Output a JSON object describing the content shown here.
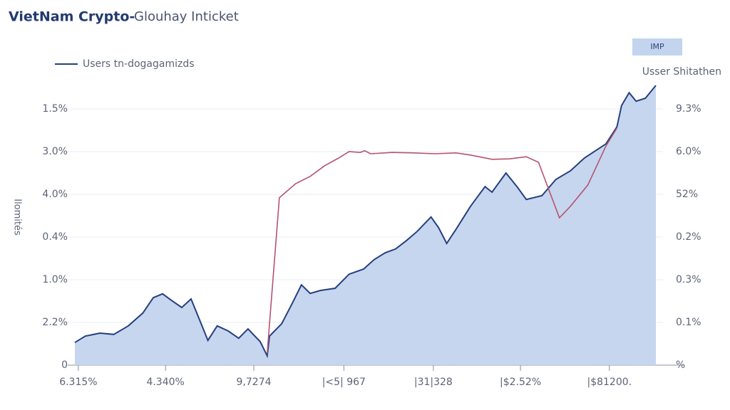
{
  "chart_data": {
    "type": "area",
    "title": "VietNam Crypto-",
    "subtitle": "Glouhay Inticket",
    "y_label": "Ilomités",
    "annotation": "IMP",
    "legend": "upper left",
    "grid": true,
    "xlim": [
      0,
      100
    ],
    "xticks": [
      {
        "value": 0.6,
        "label": "6.315%"
      },
      {
        "value": 15.6,
        "label": "4.340%"
      },
      {
        "value": 30.8,
        "label": "9,7274"
      },
      {
        "value": 46.3,
        "label": "|<5| 967"
      },
      {
        "value": 61.7,
        "label": "|31|328"
      },
      {
        "value": 76.7,
        "label": "|$2.52%"
      },
      {
        "value": 92,
        "label": "|$81200."
      }
    ],
    "ylim": [
      0,
      6.9
    ],
    "yticks": [
      {
        "value": 0,
        "label": "0"
      },
      {
        "value": 1,
        "label": "2.2%"
      },
      {
        "value": 2,
        "label": "1.0%"
      },
      {
        "value": 3,
        "label": "0.4%"
      },
      {
        "value": 4,
        "label": "4.0%"
      },
      {
        "value": 5,
        "label": "3.0%"
      },
      {
        "value": 6,
        "label": "1.5%"
      }
    ],
    "y2lim": [
      0,
      6.9
    ],
    "y2ticks": [
      {
        "value": 0,
        "label": "%"
      },
      {
        "value": 1,
        "label": "0.1%"
      },
      {
        "value": 2,
        "label": "0.3%"
      },
      {
        "value": 3,
        "label": "0.2%"
      },
      {
        "value": 4,
        "label": "52%"
      },
      {
        "value": 5,
        "label": "6.0%"
      },
      {
        "value": 6,
        "label": "9.3%"
      }
    ],
    "series": [
      {
        "name": "Users tn-dogagamizds",
        "color": "#263f7e",
        "fill": "#c3d4ee",
        "x": [
          0,
          1.8,
          4.3,
          6.7,
          9.2,
          11.7,
          13.5,
          15.1,
          16.6,
          18.4,
          20,
          21.5,
          22.9,
          24.5,
          26.4,
          28.2,
          29.8,
          31.9,
          33.1,
          33.5,
          35.6,
          37.5,
          39,
          40.5,
          42.3,
          44.8,
          47.2,
          49.7,
          51.5,
          53.4,
          55.2,
          57.1,
          58.9,
          61.3,
          62.6,
          64,
          65.6,
          68.1,
          70.6,
          71.8,
          74.2,
          76.1,
          77.7,
          80.4,
          82.8,
          85.3,
          87.7,
          91.4,
          93.3,
          94.1,
          95.4,
          96.6,
          98.2,
          100
        ],
        "values": [
          0.53,
          0.68,
          0.75,
          0.72,
          0.92,
          1.22,
          1.58,
          1.67,
          1.52,
          1.35,
          1.55,
          1.05,
          0.58,
          0.92,
          0.8,
          0.63,
          0.85,
          0.55,
          0.22,
          0.68,
          0.97,
          1.47,
          1.88,
          1.68,
          1.75,
          1.8,
          2.13,
          2.25,
          2.47,
          2.63,
          2.72,
          2.92,
          3.13,
          3.47,
          3.22,
          2.85,
          3.18,
          3.72,
          4.18,
          4.05,
          4.5,
          4.18,
          3.88,
          3.97,
          4.35,
          4.55,
          4.85,
          5.18,
          5.58,
          6.08,
          6.38,
          6.18,
          6.25,
          6.55
        ]
      },
      {
        "name": "Usser Shitathen",
        "color": "#b5546e",
        "axis": "y2",
        "x": [
          33.1,
          35.2,
          38,
          40.5,
          43,
          45.4,
          47.2,
          49.1,
          49.9,
          50.9,
          54.6,
          58.3,
          62,
          65.6,
          68.1,
          71.8,
          74.8,
          77.7,
          79.8,
          83.4,
          85.3,
          88.3,
          91.4,
          93.3
        ],
        "values": [
          0.27,
          3.92,
          4.25,
          4.42,
          4.67,
          4.85,
          5,
          4.98,
          5.02,
          4.95,
          4.98,
          4.97,
          4.95,
          4.97,
          4.92,
          4.82,
          4.83,
          4.88,
          4.75,
          3.45,
          3.72,
          4.22,
          5.13,
          5.55
        ]
      }
    ]
  }
}
